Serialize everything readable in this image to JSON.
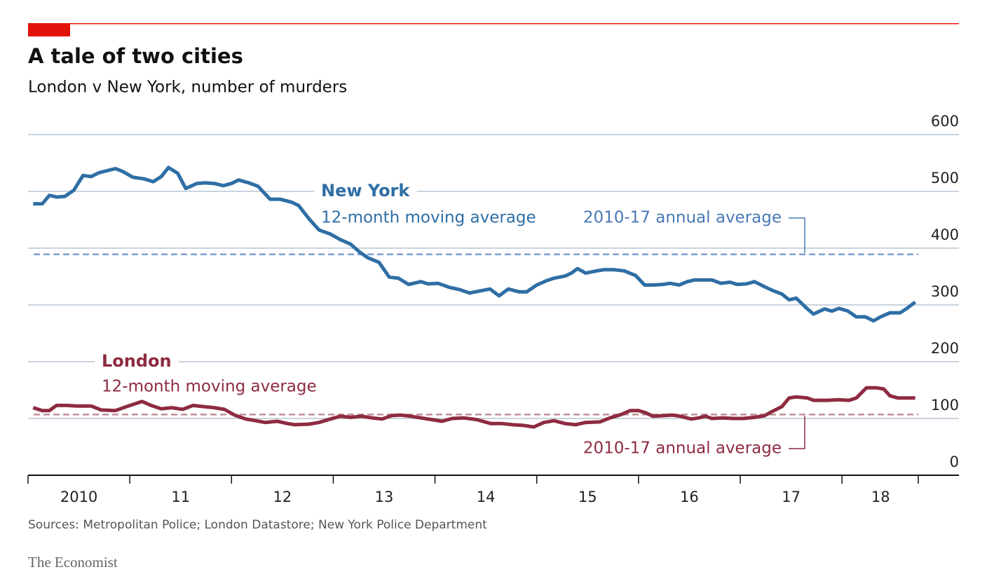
{
  "chart_data": {
    "type": "line",
    "title": "A tale of two cities",
    "subtitle": "London v New York, number of murders",
    "source": "Sources: Metropolitan Police; London Datastore; New York Police Department",
    "brand": "The Economist",
    "xlim": [
      2010,
      2018.75
    ],
    "xticks": [
      2010,
      2011,
      2012,
      2013,
      2014,
      2015,
      2016,
      2017,
      2018,
      2018.75
    ],
    "xtick_labels": [
      {
        "value": 2010.5,
        "label": "2010"
      },
      {
        "value": 2011.5,
        "label": "11"
      },
      {
        "value": 2012.5,
        "label": "12"
      },
      {
        "value": 2013.5,
        "label": "13"
      },
      {
        "value": 2014.5,
        "label": "14"
      },
      {
        "value": 2015.5,
        "label": "15"
      },
      {
        "value": 2016.5,
        "label": "16"
      },
      {
        "value": 2017.5,
        "label": "17"
      },
      {
        "value": 2018.38,
        "label": "18"
      }
    ],
    "ylim": [
      0,
      600
    ],
    "yticks": [
      0,
      100,
      200,
      300,
      400,
      500,
      600
    ],
    "grid": true,
    "series": [
      {
        "name": "New York",
        "note": "12-month moving average",
        "color": "#2f6ea5",
        "average": 389,
        "average_label": "2010-17 annual average",
        "average_color": "#7d9ed6",
        "x": [
          2010.05,
          2010.14,
          2010.21,
          2010.28,
          2010.36,
          2010.45,
          2010.54,
          2010.62,
          2010.7,
          2010.79,
          2010.86,
          2010.93,
          2011.03,
          2011.14,
          2011.23,
          2011.31,
          2011.38,
          2011.47,
          2011.55,
          2011.66,
          2011.74,
          2011.83,
          2011.92,
          2012.0,
          2012.07,
          2012.17,
          2012.26,
          2012.38,
          2012.48,
          2012.59,
          2012.66,
          2012.76,
          2012.86,
          2012.97,
          2013.07,
          2013.17,
          2013.26,
          2013.34,
          2013.45,
          2013.55,
          2013.64,
          2013.74,
          2013.86,
          2013.93,
          2014.03,
          2014.14,
          2014.24,
          2014.34,
          2014.45,
          2014.54,
          2014.63,
          2014.72,
          2014.83,
          2014.9,
          2015.0,
          2015.1,
          2015.17,
          2015.28,
          2015.34,
          2015.4,
          2015.48,
          2015.59,
          2015.66,
          2015.76,
          2015.86,
          2015.97,
          2016.06,
          2016.14,
          2016.24,
          2016.31,
          2016.4,
          2016.48,
          2016.55,
          2016.62,
          2016.72,
          2016.81,
          2016.9,
          2016.97,
          2017.06,
          2017.14,
          2017.24,
          2017.31,
          2017.41,
          2017.48,
          2017.55,
          2017.66,
          2017.72,
          2017.83,
          2017.9,
          2017.97,
          2018.06,
          2018.14,
          2018.23,
          2018.31,
          2018.38,
          2018.47,
          2018.57,
          2018.63,
          2018.72
        ],
        "values": [
          478,
          478,
          493,
          490,
          491,
          502,
          528,
          526,
          533,
          537,
          540,
          535,
          525,
          522,
          517,
          526,
          542,
          532,
          505,
          514,
          515,
          514,
          510,
          514,
          520,
          515,
          509,
          486,
          486,
          481,
          475,
          452,
          432,
          425,
          415,
          407,
          393,
          383,
          375,
          349,
          347,
          336,
          341,
          337,
          338,
          331,
          327,
          321,
          325,
          328,
          316,
          328,
          323,
          323,
          335,
          343,
          347,
          351,
          356,
          364,
          356,
          360,
          362,
          362,
          360,
          352,
          335,
          335,
          336,
          338,
          335,
          341,
          344,
          344,
          344,
          338,
          340,
          336,
          337,
          341,
          332,
          326,
          319,
          309,
          312,
          293,
          284,
          293,
          289,
          294,
          289,
          279,
          279,
          272,
          279,
          286,
          286,
          293,
          305
        ]
      },
      {
        "name": "London",
        "note": "12-month moving average",
        "color": "#8e2b40",
        "average": 107,
        "average_label": "2010-17 annual average",
        "average_color": "#bf8f98",
        "x": [
          2010.05,
          2010.14,
          2010.21,
          2010.28,
          2010.38,
          2010.48,
          2010.62,
          2010.72,
          2010.86,
          2010.97,
          2011.12,
          2011.21,
          2011.31,
          2011.41,
          2011.52,
          2011.62,
          2011.72,
          2011.83,
          2011.93,
          2012.03,
          2012.14,
          2012.24,
          2012.33,
          2012.45,
          2012.55,
          2012.62,
          2012.76,
          2012.86,
          2012.97,
          2013.07,
          2013.17,
          2013.28,
          2013.38,
          2013.48,
          2013.57,
          2013.66,
          2013.76,
          2013.86,
          2013.97,
          2014.07,
          2014.17,
          2014.28,
          2014.41,
          2014.55,
          2014.66,
          2014.76,
          2014.86,
          2014.97,
          2015.07,
          2015.17,
          2015.28,
          2015.38,
          2015.48,
          2015.62,
          2015.72,
          2015.83,
          2015.92,
          2016.0,
          2016.07,
          2016.14,
          2016.24,
          2016.33,
          2016.41,
          2016.52,
          2016.59,
          2016.66,
          2016.72,
          2016.83,
          2016.93,
          2017.03,
          2017.14,
          2017.24,
          2017.31,
          2017.41,
          2017.48,
          2017.55,
          2017.66,
          2017.72,
          2017.86,
          2017.97,
          2018.07,
          2018.14,
          2018.24,
          2018.34,
          2018.41,
          2018.47,
          2018.55,
          2018.62,
          2018.72
        ],
        "values": [
          119,
          114,
          114,
          123,
          123,
          122,
          122,
          115,
          114,
          121,
          130,
          123,
          117,
          119,
          116,
          123,
          121,
          119,
          116,
          106,
          99,
          96,
          93,
          95,
          91,
          89,
          90,
          93,
          99,
          104,
          102,
          104,
          101,
          99,
          105,
          106,
          104,
          101,
          98,
          95,
          100,
          101,
          98,
          91,
          91,
          89,
          88,
          85,
          93,
          96,
          91,
          89,
          93,
          94,
          101,
          107,
          114,
          114,
          110,
          104,
          105,
          106,
          104,
          99,
          101,
          104,
          100,
          101,
          100,
          100,
          102,
          105,
          112,
          121,
          136,
          138,
          136,
          132,
          132,
          133,
          132,
          136,
          154,
          154,
          152,
          140,
          136,
          136,
          136
        ]
      }
    ]
  }
}
